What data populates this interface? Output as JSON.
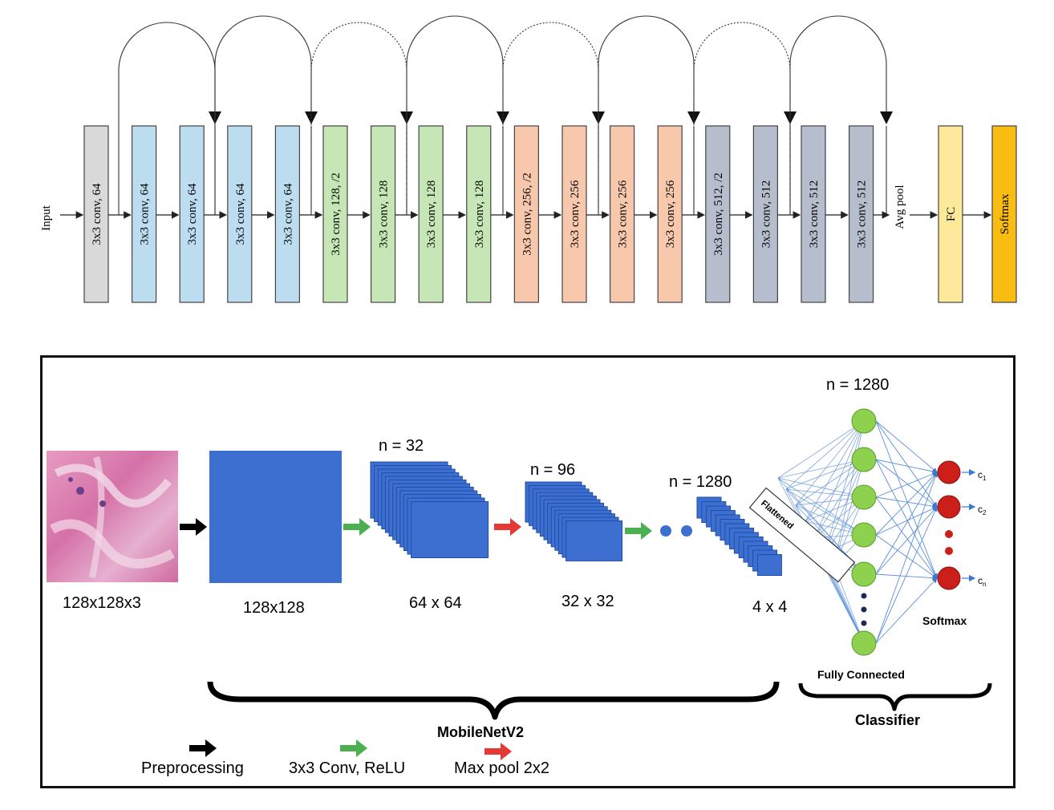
{
  "resnet": {
    "input_label": "Input",
    "layers": [
      {
        "label": "3x3 conv, 64",
        "color": "#d9d9d9"
      },
      {
        "label": "3x3 conv, 64",
        "color": "#bcdcf0"
      },
      {
        "label": "3x3 conv, 64",
        "color": "#bcdcf0"
      },
      {
        "label": "3x3 conv, 64",
        "color": "#bcdcf0"
      },
      {
        "label": "3x3 conv, 64",
        "color": "#bcdcf0"
      },
      {
        "label": "3x3 conv, 128, /2",
        "color": "#c6e6b5"
      },
      {
        "label": "3x3 conv, 128",
        "color": "#c6e6b5"
      },
      {
        "label": "3x3 conv, 128",
        "color": "#c6e6b5"
      },
      {
        "label": "3x3 conv, 128",
        "color": "#c6e6b5"
      },
      {
        "label": "3x3 conv, 256, /2",
        "color": "#f8c8ad"
      },
      {
        "label": "3x3 conv, 256",
        "color": "#f8c8ad"
      },
      {
        "label": "3x3 conv, 256",
        "color": "#f8c8ad"
      },
      {
        "label": "3x3 conv, 256",
        "color": "#f8c8ad"
      },
      {
        "label": "3x3 conv, 512, /2",
        "color": "#b6bdcc"
      },
      {
        "label": "3x3 conv, 512",
        "color": "#b6bdcc"
      },
      {
        "label": "3x3 conv, 512",
        "color": "#b6bdcc"
      },
      {
        "label": "3x3 conv, 512",
        "color": "#b6bdcc"
      }
    ],
    "avgpool_label": "Avg pool",
    "fc": {
      "label": "FC",
      "color": "#fde99a"
    },
    "softmax": {
      "label": "Softmax",
      "color": "#f9bd12"
    }
  },
  "mobilenet": {
    "input_dim": "128x128x3",
    "stage1": {
      "dim": "128x128"
    },
    "stage2": {
      "n": "n = 32",
      "dim": "64 x 64"
    },
    "stage3": {
      "n": "n = 96",
      "dim": "32 x 32"
    },
    "stage4": {
      "n": "n = 1280",
      "dim": "4 x 4"
    },
    "flattened": "Flattened",
    "fc_n": "n = 1280",
    "outputs": [
      "c1",
      "c2",
      "cn"
    ],
    "fully_connected": "Fully Connected",
    "softmax": "Softmax",
    "brace_mobilenet": "MobileNetV2",
    "brace_classifier": "Classifier",
    "legend": [
      {
        "label": "Preprocessing",
        "color": "#000000"
      },
      {
        "label": "3x3 Conv, ReLU",
        "color": "#4caf50"
      },
      {
        "label": "Max pool 2x2",
        "color": "#e53935"
      }
    ],
    "colors": {
      "block": "#3d6fd1",
      "block_edge": "#1f4ea8",
      "node_green": "#8ed14f",
      "node_red": "#cc1f1a",
      "edge": "#5b8fd8"
    }
  }
}
